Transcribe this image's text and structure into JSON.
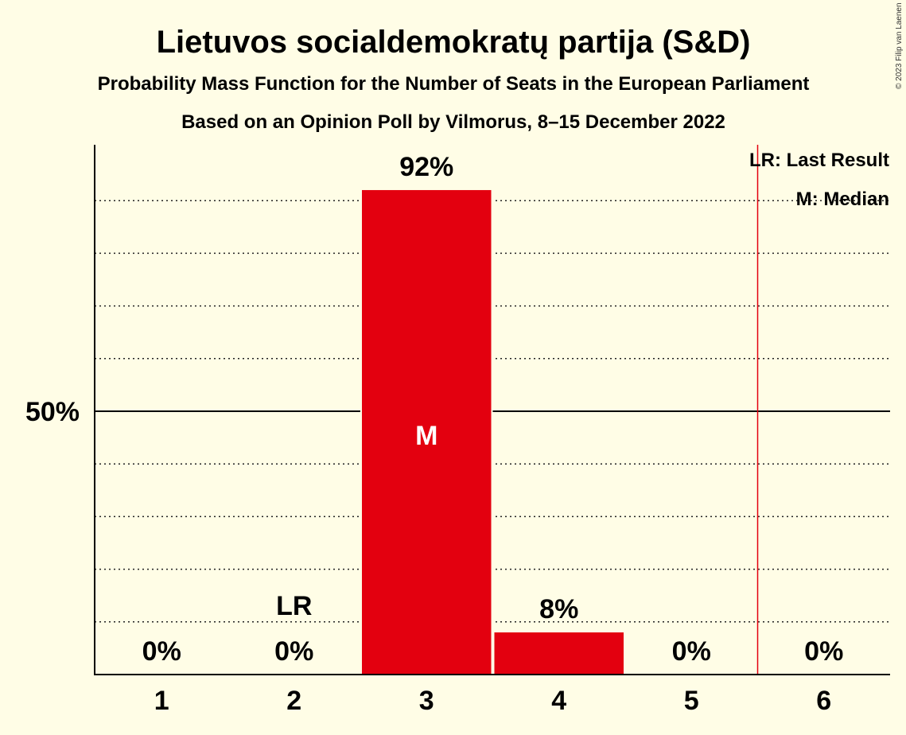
{
  "chart_data": {
    "type": "bar",
    "title": "Lietuvos socialdemokratų partija (S&D)",
    "subtitle": "Probability Mass Function for the Number of Seats in the European Parliament",
    "subtitle2": "Based on an Opinion Poll by Vilmorus, 8–15 December 2022",
    "categories": [
      "1",
      "2",
      "3",
      "4",
      "5",
      "6"
    ],
    "values": [
      0,
      0,
      92,
      8,
      0,
      0
    ],
    "value_labels": [
      "0%",
      "0%",
      "92%",
      "8%",
      "0%",
      "0%"
    ],
    "ylim": [
      0,
      100
    ],
    "y_tick_label": "50%",
    "y_tick_value": 50,
    "grid": true,
    "bar_color": "#e3000f",
    "last_result_category": "2",
    "last_result_marker": "LR",
    "median_category": "3",
    "median_marker": "M",
    "threshold_line_between": [
      "5",
      "6"
    ],
    "threshold_color": "#e3000f",
    "legend": [
      "LR: Last Result",
      "M: Median"
    ],
    "legend_position": "top-right"
  },
  "copyright": "© 2023 Filip van Laenen"
}
